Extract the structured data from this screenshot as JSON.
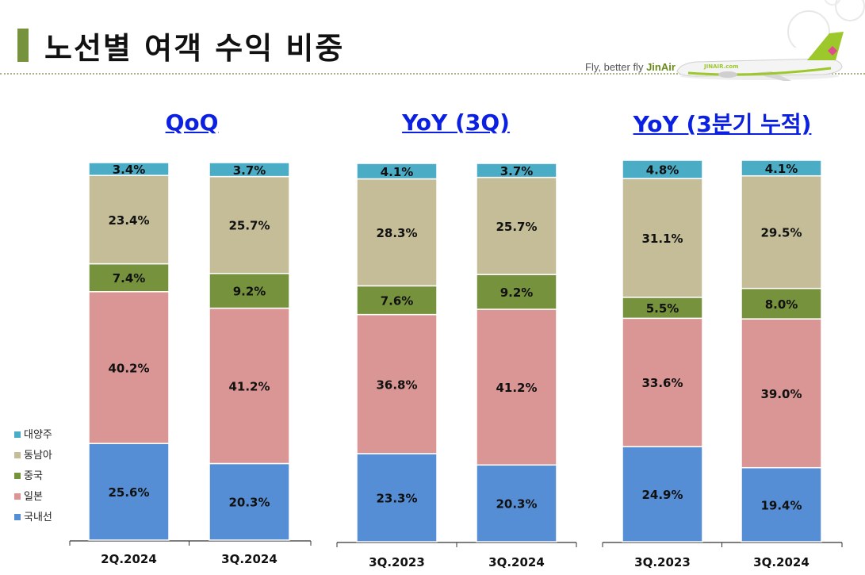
{
  "page": {
    "title": "노선별 여객 수익 비중",
    "tagline_prefix": "Fly, better fly ",
    "tagline_brand": "JinAir",
    "plane_livery_text": "JINAIR.com"
  },
  "colors": {
    "대양주": "#4bacc6",
    "동남아": "#c4bd97",
    "중국": "#76923c",
    "일본": "#d99694",
    "국내선": "#558ed5",
    "title_accent": "#76923c",
    "chart_title": "#0b20e0"
  },
  "chart_data": [
    {
      "type": "bar",
      "stacked": true,
      "title": "QoQ",
      "categories": [
        "2Q.2024",
        "3Q.2024"
      ],
      "series": [
        {
          "name": "국내선",
          "values": [
            25.6,
            20.3
          ]
        },
        {
          "name": "일본",
          "values": [
            40.2,
            41.2
          ]
        },
        {
          "name": "중국",
          "values": [
            7.4,
            9.2
          ]
        },
        {
          "name": "동남아",
          "values": [
            23.4,
            25.7
          ]
        },
        {
          "name": "대양주",
          "values": [
            3.4,
            3.7
          ]
        }
      ],
      "unit": "%",
      "ylim": [
        0,
        100
      ]
    },
    {
      "type": "bar",
      "stacked": true,
      "title": "YoY (3Q)",
      "categories": [
        "3Q.2023",
        "3Q.2024"
      ],
      "series": [
        {
          "name": "국내선",
          "values": [
            23.3,
            20.3
          ]
        },
        {
          "name": "일본",
          "values": [
            36.8,
            41.2
          ]
        },
        {
          "name": "중국",
          "values": [
            7.6,
            9.2
          ]
        },
        {
          "name": "동남아",
          "values": [
            28.3,
            25.7
          ]
        },
        {
          "name": "대양주",
          "values": [
            4.1,
            3.7
          ]
        }
      ],
      "unit": "%",
      "ylim": [
        0,
        100
      ]
    },
    {
      "type": "bar",
      "stacked": true,
      "title": "YoY (3분기 누적)",
      "categories": [
        "3Q.2023",
        "3Q.2024"
      ],
      "series": [
        {
          "name": "국내선",
          "values": [
            24.9,
            19.4
          ]
        },
        {
          "name": "일본",
          "values": [
            33.6,
            39.0
          ]
        },
        {
          "name": "중국",
          "values": [
            5.5,
            8.0
          ]
        },
        {
          "name": "동남아",
          "values": [
            31.1,
            29.5
          ]
        },
        {
          "name": "대양주",
          "values": [
            4.8,
            4.1
          ]
        }
      ],
      "unit": "%",
      "ylim": [
        0,
        100
      ]
    }
  ],
  "legend": [
    "대양주",
    "동남아",
    "중국",
    "일본",
    "국내선"
  ]
}
